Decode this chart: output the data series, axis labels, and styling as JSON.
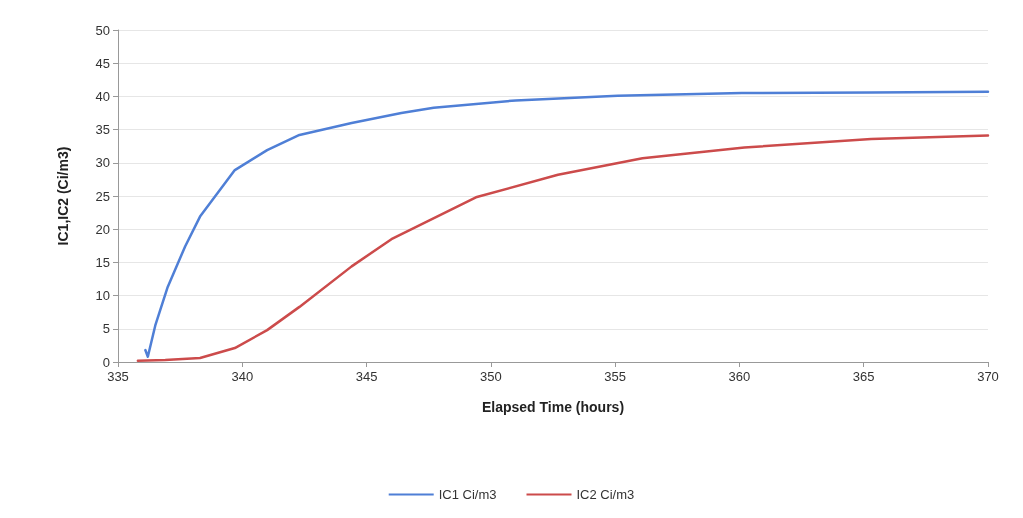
{
  "chart_data": {
    "type": "line",
    "xlabel": "Elapsed Time (hours)",
    "ylabel": "IC1,IC2 (Ci/m3)",
    "xlim": [
      335,
      370
    ],
    "xticks": [
      335,
      340,
      345,
      350,
      355,
      360,
      365,
      370
    ],
    "ylim": [
      0,
      50
    ],
    "yticks": [
      0,
      5,
      10,
      15,
      20,
      25,
      30,
      35,
      40,
      45,
      50
    ],
    "grid": "y",
    "legend": "bottom",
    "marker": "none",
    "line_style": "solid",
    "series": [
      {
        "name": "IC1 Ci/m3",
        "color": "#4f7fd6",
        "x": [
          336.1,
          336.2,
          336.5,
          337.0,
          337.7,
          338.3,
          339.7,
          341.0,
          342.3,
          344.4,
          346.4,
          347.7,
          351.0,
          355.1,
          360.1,
          365.3,
          370.0
        ],
        "values": [
          1.8,
          0.8,
          5.5,
          11.3,
          17.4,
          21.9,
          28.9,
          31.9,
          34.2,
          36.0,
          37.5,
          38.3,
          39.4,
          40.1,
          40.5,
          40.6,
          40.7
        ]
      },
      {
        "name": "IC2 Ci/m3",
        "color": "#cc4b4b",
        "x": [
          335.8,
          336.9,
          338.3,
          339.7,
          341.0,
          342.3,
          344.4,
          346.0,
          349.4,
          352.7,
          356.1,
          360.2,
          365.3,
          370.0
        ],
        "values": [
          0.2,
          0.3,
          0.6,
          2.1,
          4.8,
          8.3,
          14.4,
          18.5,
          24.8,
          28.2,
          30.7,
          32.3,
          33.6,
          34.1
        ]
      }
    ]
  }
}
